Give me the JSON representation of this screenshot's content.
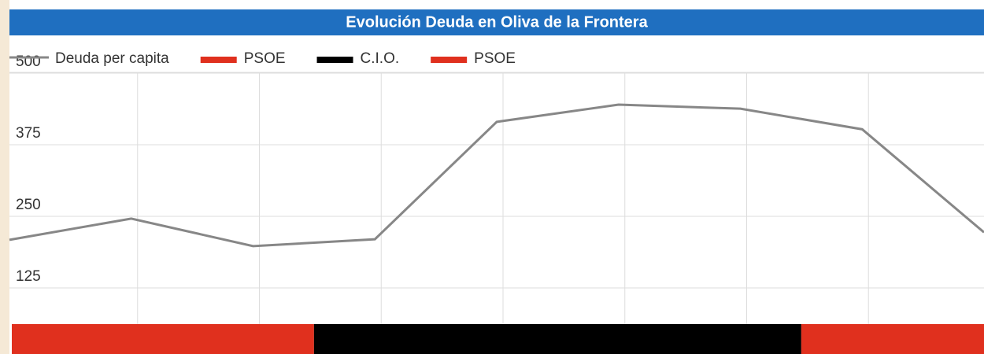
{
  "chart_data": {
    "type": "line",
    "title": "Evolución Deuda en Oliva de la Frontera",
    "categories": [
      null,
      null,
      null,
      null,
      null,
      null,
      null,
      null,
      null
    ],
    "series": [
      {
        "name": "Deuda per capita",
        "color": "#878787",
        "values": [
          209,
          246,
          198,
          210,
          415,
          445,
          438,
          402,
          222
        ]
      }
    ],
    "periods": [
      {
        "name": "PSOE",
        "color": "#e0301e",
        "start": 0,
        "end": 2.5
      },
      {
        "name": "C.I.O.",
        "color": "#000000",
        "start": 2.5,
        "end": 6.5
      },
      {
        "name": "PSOE",
        "color": "#e0301e",
        "start": 6.5,
        "end": 8
      }
    ],
    "ylim": [
      0,
      500
    ],
    "yticks": [
      125,
      250,
      375,
      500
    ],
    "grid": true
  }
}
